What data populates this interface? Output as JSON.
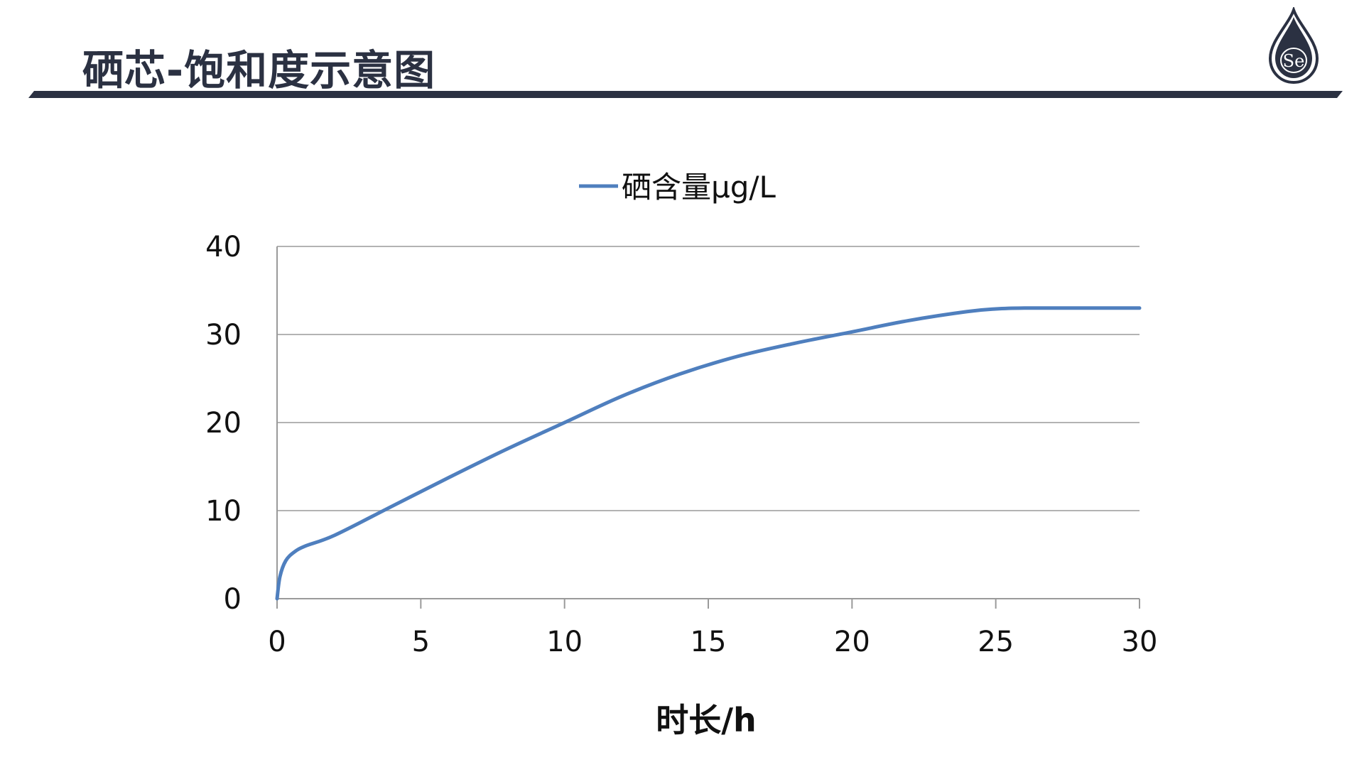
{
  "slide": {
    "title": "硒芯-饱和度示意图",
    "accent_color": "#2b3142",
    "logo_text": "Se"
  },
  "chart_data": {
    "type": "line",
    "title": "",
    "xlabel": "时长/h",
    "ylabel": "",
    "xlim": [
      0,
      30
    ],
    "ylim": [
      0,
      40
    ],
    "xticks": [
      0,
      5,
      10,
      15,
      20,
      25,
      30
    ],
    "yticks": [
      0,
      10,
      20,
      30,
      40
    ],
    "grid": "horizontal",
    "legend": "top-center",
    "series": [
      {
        "name": "硒含量μg/L",
        "color": "#4f7fbe",
        "x": [
          0,
          0.1,
          0.3,
          0.6,
          1,
          2,
          4,
          6,
          8,
          10,
          12,
          14,
          16,
          18,
          20,
          22,
          24,
          25,
          26,
          28,
          30
        ],
        "y": [
          0,
          2.5,
          4.3,
          5.3,
          6,
          7.2,
          10.5,
          13.8,
          17,
          20,
          23,
          25.5,
          27.5,
          29,
          30.3,
          31.6,
          32.6,
          32.9,
          33,
          33,
          33
        ]
      }
    ]
  }
}
